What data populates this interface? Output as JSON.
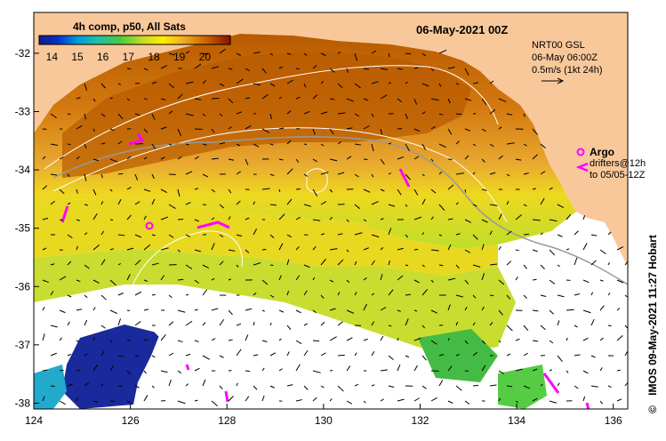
{
  "title": "06-May-2021 00Z",
  "colorbar": {
    "title": "4h comp, p50, All Sats",
    "ticks": [
      "14",
      "15",
      "16",
      "17",
      "18",
      "19",
      "20"
    ],
    "range": [
      13.5,
      21.0
    ]
  },
  "current_info": {
    "line1": "NRT00 GSL",
    "line2": "06-May 06:00Z",
    "line3": "0.5m/s (1kt 24h)"
  },
  "argo_label": "Argo",
  "drifter_label_1": "drifters@12h",
  "drifter_label_2": "to 05/05-12Z",
  "credit": "IMOS 09-May-2021 11:27 Hobart",
  "copyright": "©",
  "axes": {
    "lon_ticks": [
      "124",
      "126",
      "128",
      "130",
      "132",
      "134",
      "136"
    ],
    "lat_ticks": [
      "-32",
      "-33",
      "-34",
      "-35",
      "-36",
      "-37",
      "-38"
    ],
    "lon_range": [
      124,
      136.3
    ],
    "lat_range": [
      -31.3,
      -38.1
    ]
  },
  "colors": {
    "land": "#f9c89a",
    "frame": "#000000",
    "argo": "#ff00ff",
    "sst_warm": "#c86200",
    "sst_mid": "#e8a020",
    "sst_cool": "#9acd32"
  }
}
